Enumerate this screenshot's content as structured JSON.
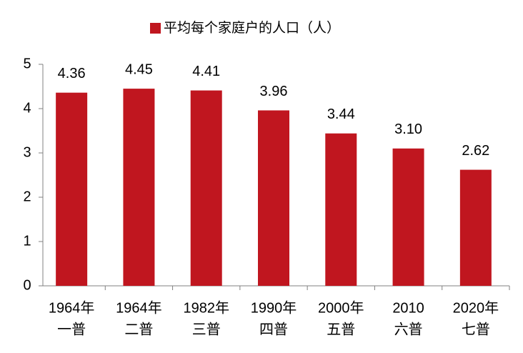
{
  "chart_data": {
    "type": "bar",
    "legend": "平均每个家庭户的人口（人）",
    "categories": [
      [
        "1964年",
        "一普"
      ],
      [
        "1964年",
        "二普"
      ],
      [
        "1982年",
        "三普"
      ],
      [
        "1990年",
        "四普"
      ],
      [
        "2000年",
        "五普"
      ],
      [
        "2010",
        "六普"
      ],
      [
        "2020年",
        "七普"
      ]
    ],
    "values": [
      4.36,
      4.45,
      4.41,
      3.96,
      3.44,
      3.1,
      2.62
    ],
    "value_labels": [
      "4.36",
      "4.45",
      "4.41",
      "3.96",
      "3.44",
      "3.10",
      "2.62"
    ],
    "color": "#c0161f",
    "ylim": [
      0,
      5
    ],
    "yticks": [
      0,
      1,
      2,
      3,
      4,
      5
    ],
    "grid": false
  }
}
